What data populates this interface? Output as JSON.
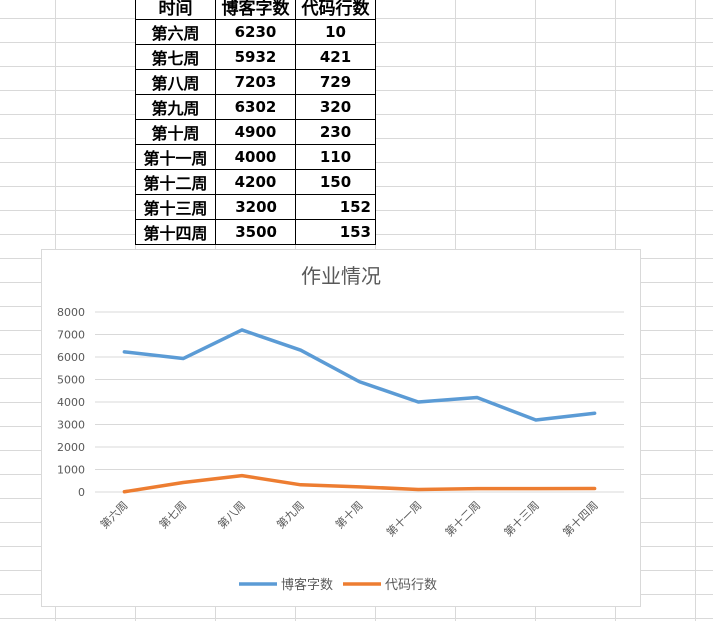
{
  "table": {
    "headers": [
      "时间",
      "博客字数",
      "代码行数"
    ],
    "rows": [
      {
        "week": "第六周",
        "blog": "6230",
        "code": "10"
      },
      {
        "week": "第七周",
        "blog": "5932",
        "code": "421"
      },
      {
        "week": "第八周",
        "blog": "7203",
        "code": "729"
      },
      {
        "week": "第九周",
        "blog": "6302",
        "code": "320"
      },
      {
        "week": "第十周",
        "blog": "4900",
        "code": "230"
      },
      {
        "week": "第十一周",
        "blog": "4000",
        "code": "110"
      },
      {
        "week": "第十二周",
        "blog": "4200",
        "code": "150"
      },
      {
        "week": "第十三周",
        "blog": "3200",
        "code": "152"
      },
      {
        "week": "第十四周",
        "blog": "3500",
        "code": "153"
      }
    ]
  },
  "chart_data": {
    "type": "line",
    "title": "作业情况",
    "categories": [
      "第六周",
      "第七周",
      "第八周",
      "第九周",
      "第十周",
      "第十一周",
      "第十二周",
      "第十三周",
      "第十四周"
    ],
    "series": [
      {
        "name": "博客字数",
        "color": "#5b9bd5",
        "values": [
          6230,
          5932,
          7203,
          6302,
          4900,
          4000,
          4200,
          3200,
          3500
        ]
      },
      {
        "name": "代码行数",
        "color": "#ed7d31",
        "values": [
          10,
          421,
          729,
          320,
          230,
          110,
          150,
          152,
          153
        ]
      }
    ],
    "ylim": [
      0,
      8000
    ],
    "yticks": [
      0,
      1000,
      2000,
      3000,
      4000,
      5000,
      6000,
      7000,
      8000
    ],
    "grid": true,
    "legend": "bottom"
  }
}
